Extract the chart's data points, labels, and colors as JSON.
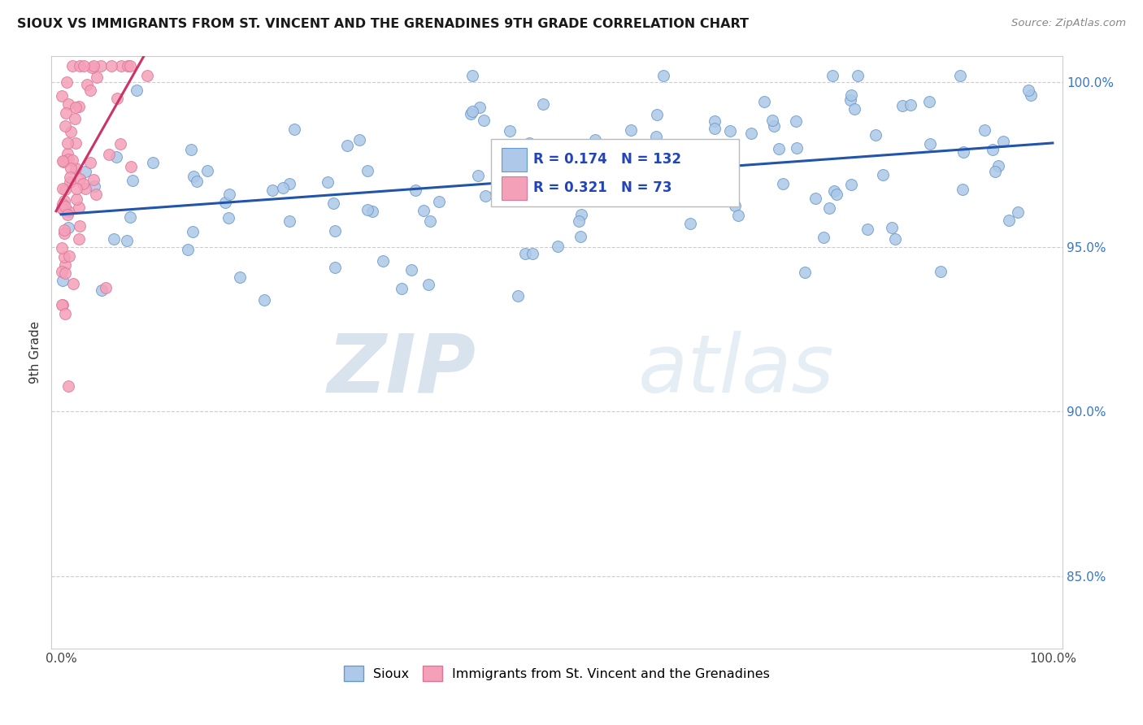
{
  "title": "SIOUX VS IMMIGRANTS FROM ST. VINCENT AND THE GRENADINES 9TH GRADE CORRELATION CHART",
  "source": "Source: ZipAtlas.com",
  "ylabel": "9th Grade",
  "xlim": [
    -0.01,
    1.01
  ],
  "ylim": [
    0.828,
    1.008
  ],
  "yticks": [
    0.85,
    0.9,
    0.95,
    1.0
  ],
  "ytick_labels": [
    "85.0%",
    "90.0%",
    "95.0%",
    "100.0%"
  ],
  "xticks": [
    0.0,
    0.25,
    0.5,
    0.75,
    1.0
  ],
  "xtick_labels": [
    "0.0%",
    "",
    "",
    "",
    "100.0%"
  ],
  "blue_color": "#adc8e8",
  "blue_edge": "#6699cc",
  "blue_line": "#2255aa",
  "pink_color": "#f4a0b8",
  "pink_edge": "#dd7799",
  "pink_line": "#cc3366",
  "watermark_zip": "ZIP",
  "watermark_atlas": "atlas",
  "r_blue": 0.174,
  "n_blue": 132,
  "r_pink": 0.321,
  "n_pink": 73,
  "legend_text_color": "#2244bb",
  "legend_n_color": "#22aa22"
}
